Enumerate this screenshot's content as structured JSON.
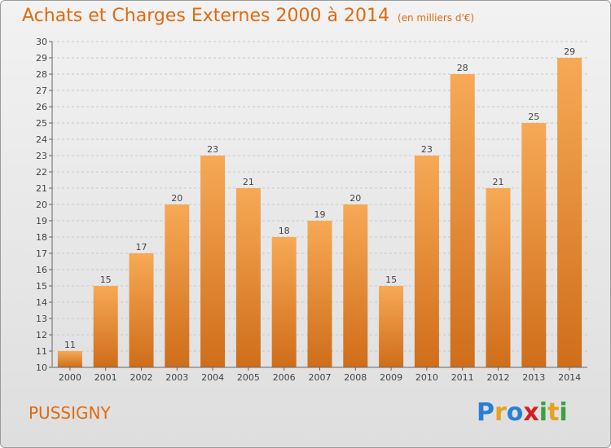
{
  "title": "Achats et Charges Externes 2000 à 2014",
  "unit": "(en milliers d'€)",
  "commune": "PUSSIGNY",
  "logo": {
    "text": "Proxiti",
    "colors": [
      "#2a7fd4",
      "#e8a020",
      "#2a7fd4",
      "#d42020",
      "#3aa040",
      "#e8a020",
      "#3aa040"
    ]
  },
  "colors": {
    "bar_light": "#f7a955",
    "bar_dark": "#cf6d1a",
    "text_accent": "#e06a10"
  },
  "chart_data": {
    "type": "bar",
    "categories": [
      "2000",
      "2001",
      "2002",
      "2003",
      "2004",
      "2005",
      "2006",
      "2007",
      "2008",
      "2009",
      "2010",
      "2011",
      "2012",
      "2013",
      "2014"
    ],
    "values": [
      11,
      15,
      17,
      20,
      23,
      21,
      18,
      19,
      20,
      15,
      23,
      28,
      21,
      25,
      29
    ],
    "title": "Achats et Charges Externes 2000 à 2014",
    "subtitle": "(en milliers d'€)",
    "ylim": [
      10,
      30
    ],
    "yticks": [
      10,
      11,
      12,
      13,
      14,
      15,
      16,
      17,
      18,
      19,
      20,
      21,
      22,
      23,
      24,
      25,
      26,
      27,
      28,
      29,
      30
    ],
    "grid": true,
    "data_labels": true
  }
}
